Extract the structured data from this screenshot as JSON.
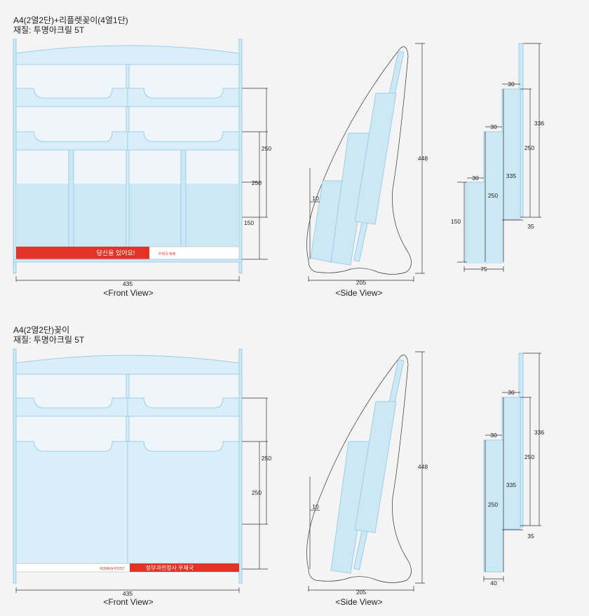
{
  "section1": {
    "title": "A4(2열2단)+리플렛꽂이(4열1단)",
    "material": "재질: 투명아크릴 5T",
    "front_caption": "<Front View>",
    "side_caption": "<Side View>",
    "front_dims": {
      "width": "435",
      "d1": "250",
      "d2": "250",
      "d3": "150"
    },
    "side_dims": {
      "height": "448",
      "width": "205",
      "small": "10"
    },
    "detail_dims": {
      "t1": "30",
      "t2": "30",
      "t3": "30",
      "h1": "336",
      "h2": "250",
      "h3": "335",
      "h4": "250",
      "h5": "150",
      "b1": "35",
      "b2": "75"
    },
    "banner_text": "당신을 있어요!",
    "banner_logo_text": "우체국 택배"
  },
  "section2": {
    "title": "A4(2열2단)꽂이",
    "material": "재질: 투명아크릴 5T",
    "front_caption": "<Front View>",
    "side_caption": "<Side View>",
    "front_dims": {
      "width": "435",
      "d1": "250",
      "d2": "250"
    },
    "side_dims": {
      "height": "448",
      "width": "205",
      "small": "10"
    },
    "detail_dims": {
      "t1": "30",
      "t2": "30",
      "h1": "336",
      "h2": "250",
      "h3": "335",
      "h4": "250",
      "b1": "35",
      "b2": "40"
    },
    "banner_logo_text": "KOREA POST",
    "banner_text": "정부과천청사 우체국"
  },
  "colors": {
    "acrylic": "#cde8f5",
    "acrylic_edge": "#9fcde6",
    "banner_red": "#e53226",
    "line": "#333333"
  }
}
